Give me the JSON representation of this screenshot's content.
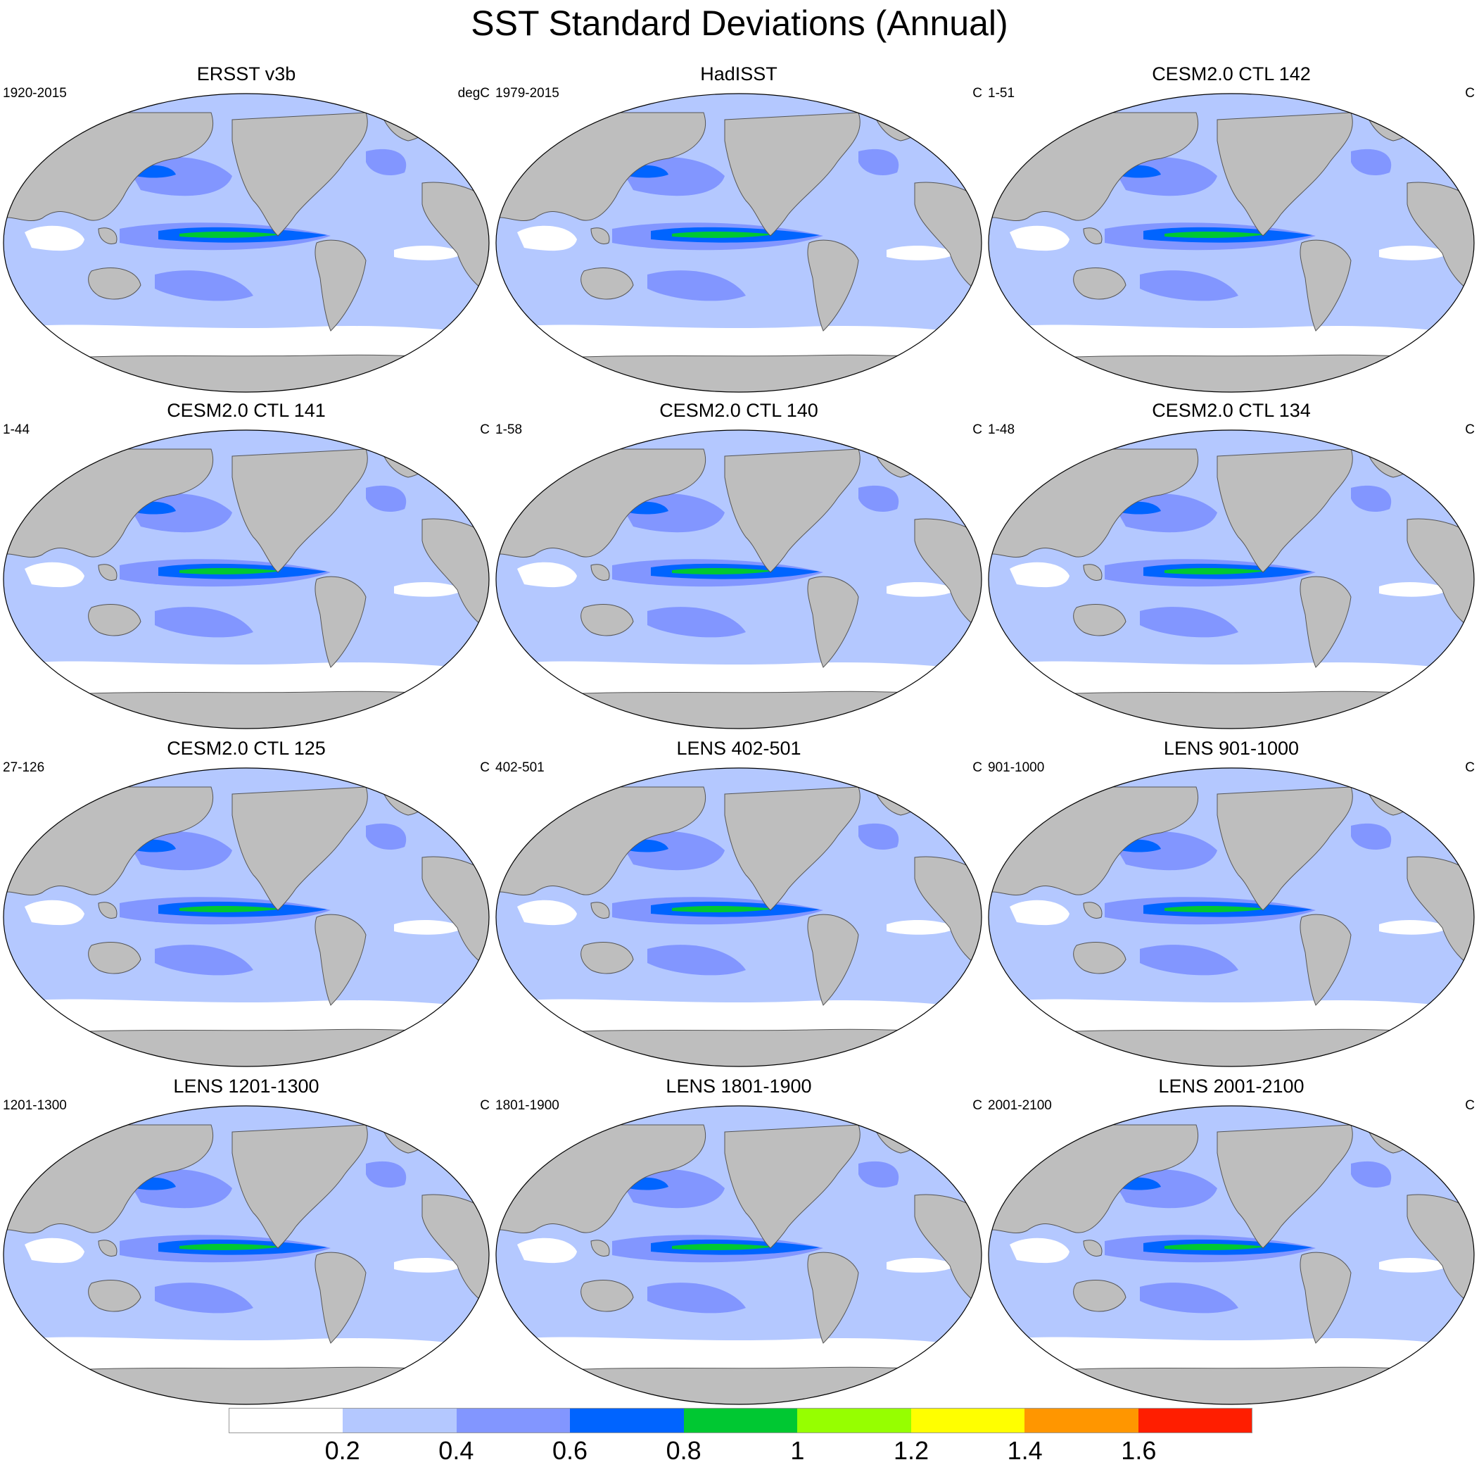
{
  "title": "SST Standard Deviations (Annual)",
  "colors": {
    "land": "#bebebe",
    "bins": [
      "#ffffff",
      "#b4c8ff",
      "#8296ff",
      "#0064ff",
      "#00c832",
      "#96ff00",
      "#ffff00",
      "#ff9600",
      "#ff1e00"
    ]
  },
  "colorbar": {
    "labels": [
      "0.2",
      "0.4",
      "0.6",
      "0.8",
      "1",
      "1.2",
      "1.4",
      "1.6"
    ]
  },
  "panels": [
    {
      "title": "ERSST v3b",
      "left": "1920-2015",
      "right": "degC"
    },
    {
      "title": "HadISST",
      "left": "1979-2015",
      "right": "C"
    },
    {
      "title": "CESM2.0 CTL 142",
      "left": "1-51",
      "right": "C"
    },
    {
      "title": "CESM2.0 CTL 141",
      "left": "1-44",
      "right": "C"
    },
    {
      "title": "CESM2.0 CTL 140",
      "left": "1-58",
      "right": "C"
    },
    {
      "title": "CESM2.0 CTL 134",
      "left": "1-48",
      "right": "C"
    },
    {
      "title": "CESM2.0 CTL 125",
      "left": "27-126",
      "right": "C"
    },
    {
      "title": "LENS 402-501",
      "left": "402-501",
      "right": "C"
    },
    {
      "title": "LENS 901-1000",
      "left": "901-1000",
      "right": "C"
    },
    {
      "title": "LENS 1201-1300",
      "left": "1201-1300",
      "right": "C"
    },
    {
      "title": "LENS 1801-1900",
      "left": "1801-1900",
      "right": "C"
    },
    {
      "title": "LENS 2001-2100",
      "left": "2001-2100",
      "right": "C"
    }
  ]
}
